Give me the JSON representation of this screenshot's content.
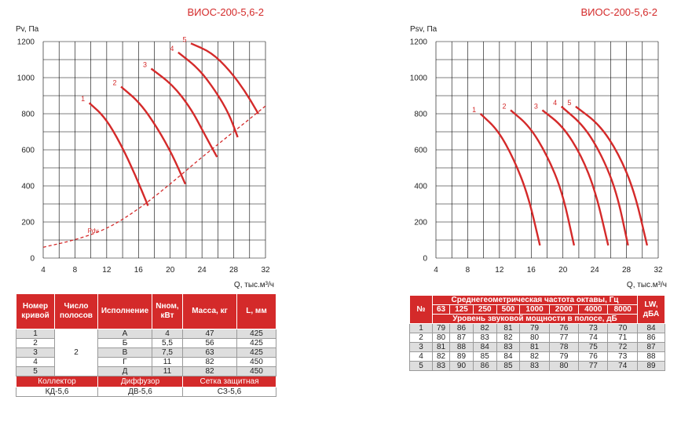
{
  "charts": [
    {
      "title": "ВИОС-200-5,6-2",
      "ylabel": "Pv, Па",
      "xlabel": "Q, тыс.м³/ч"
    },
    {
      "title": "ВИОС-200-5,6-2",
      "ylabel": "Psv, Па",
      "xlabel": "Q, тыс.м³/ч"
    }
  ],
  "chart_data": [
    {
      "type": "line",
      "title": "ВИОС-200-5,6-2",
      "ylabel": "Pv, Па",
      "xlabel": "Q, тыс.м³/ч",
      "xlim": [
        4,
        32
      ],
      "ylim": [
        0,
        1200
      ],
      "xticks": [
        "4",
        "8",
        "12",
        "16",
        "20",
        "24",
        "28",
        "32"
      ],
      "yticks": [
        "0",
        "200",
        "400",
        "600",
        "800",
        "1000",
        "1200"
      ],
      "grid": true,
      "curve_color": "#d42a2a",
      "series": [
        {
          "name": "1",
          "x": [
            9.8,
            11.8,
            13.8,
            15.6,
            17.2
          ],
          "y": [
            860,
            780,
            630,
            460,
            290
          ]
        },
        {
          "name": "2",
          "x": [
            13.8,
            16.2,
            18.4,
            20.3,
            21.9
          ],
          "y": [
            950,
            860,
            720,
            570,
            410
          ]
        },
        {
          "name": "3",
          "x": [
            17.6,
            20.3,
            22.6,
            24.4,
            25.9
          ],
          "y": [
            1050,
            960,
            830,
            680,
            560
          ]
        },
        {
          "name": "4",
          "x": [
            21.0,
            23.6,
            25.8,
            27.4,
            28.5
          ],
          "y": [
            1140,
            1050,
            920,
            800,
            670
          ]
        },
        {
          "name": "5",
          "x": [
            22.6,
            25.2,
            27.5,
            29.5,
            31.1
          ],
          "y": [
            1190,
            1140,
            1040,
            920,
            800
          ]
        },
        {
          "name": "Pdv",
          "dashed": true,
          "x": [
            4,
            8,
            12,
            16,
            20,
            24,
            28,
            32.2
          ],
          "y": [
            60,
            100,
            160,
            270,
            410,
            560,
            700,
            850
          ]
        }
      ]
    },
    {
      "type": "line",
      "title": "ВИОС-200-5,6-2",
      "ylabel": "Psv, Па",
      "xlabel": "Q, тыс.м³/ч",
      "xlim": [
        4,
        32
      ],
      "ylim": [
        0,
        1200
      ],
      "xticks": [
        "4",
        "8",
        "12",
        "16",
        "20",
        "24",
        "28",
        "32"
      ],
      "yticks": [
        "0",
        "200",
        "400",
        "600",
        "800",
        "1000",
        "1200"
      ],
      "grid": true,
      "curve_color": "#d42a2a",
      "series": [
        {
          "name": "1",
          "x": [
            9.6,
            11.8,
            13.8,
            15.6,
            17.1
          ],
          "y": [
            800,
            710,
            550,
            350,
            70
          ]
        },
        {
          "name": "2",
          "x": [
            13.4,
            15.8,
            18.0,
            19.9,
            21.4
          ],
          "y": [
            820,
            730,
            570,
            370,
            70
          ]
        },
        {
          "name": "3",
          "x": [
            17.4,
            20.0,
            22.3,
            24.1,
            25.7
          ],
          "y": [
            820,
            730,
            570,
            370,
            70
          ]
        },
        {
          "name": "4",
          "x": [
            19.8,
            22.7,
            25.0,
            26.8,
            28.2
          ],
          "y": [
            840,
            730,
            560,
            360,
            70
          ]
        },
        {
          "name": "5",
          "x": [
            21.6,
            24.6,
            27.0,
            29.0,
            30.6
          ],
          "y": [
            840,
            740,
            580,
            370,
            70
          ]
        }
      ]
    }
  ],
  "spec_table": {
    "headers": [
      "Номер кривой",
      "Число полосов",
      "Исполнение",
      "Nном, кВт",
      "Масса, кг",
      "L, мм"
    ],
    "poles": "2",
    "rows": [
      {
        "num": "1",
        "version": "А",
        "power": "4",
        "mass": "47",
        "length": "425"
      },
      {
        "num": "2",
        "version": "Б",
        "power": "5,5",
        "mass": "56",
        "length": "425"
      },
      {
        "num": "3",
        "version": "В",
        "power": "7,5",
        "mass": "63",
        "length": "425"
      },
      {
        "num": "4",
        "version": "Г",
        "power": "11",
        "mass": "82",
        "length": "450"
      },
      {
        "num": "5",
        "version": "Д",
        "power": "11",
        "mass": "82",
        "length": "450"
      }
    ],
    "footer_labels": [
      "Коллектор",
      "Диффузор",
      "Сетка защитная"
    ],
    "footer_values": [
      "КД-5,6",
      "ДВ-5,6",
      "СЗ-5,6"
    ]
  },
  "sound_table": {
    "num_header": "№",
    "freq_header": "Среднегеометрическая частота октавы, Гц",
    "lw_header": "LW, дБА",
    "bands": [
      "63",
      "125",
      "250",
      "500",
      "1000",
      "2000",
      "4000",
      "8000"
    ],
    "power_header": "Уровень звуковой мощности в полосе, дБ",
    "rows": [
      {
        "num": "1",
        "values": [
          "79",
          "86",
          "82",
          "81",
          "79",
          "76",
          "73",
          "70"
        ],
        "lw": "84"
      },
      {
        "num": "2",
        "values": [
          "80",
          "87",
          "83",
          "82",
          "80",
          "77",
          "74",
          "71"
        ],
        "lw": "86"
      },
      {
        "num": "3",
        "values": [
          "81",
          "88",
          "84",
          "83",
          "81",
          "78",
          "75",
          "72"
        ],
        "lw": "87"
      },
      {
        "num": "4",
        "values": [
          "82",
          "89",
          "85",
          "84",
          "82",
          "79",
          "76",
          "73"
        ],
        "lw": "88"
      },
      {
        "num": "5",
        "values": [
          "83",
          "90",
          "86",
          "85",
          "83",
          "80",
          "77",
          "74"
        ],
        "lw": "89"
      }
    ]
  }
}
